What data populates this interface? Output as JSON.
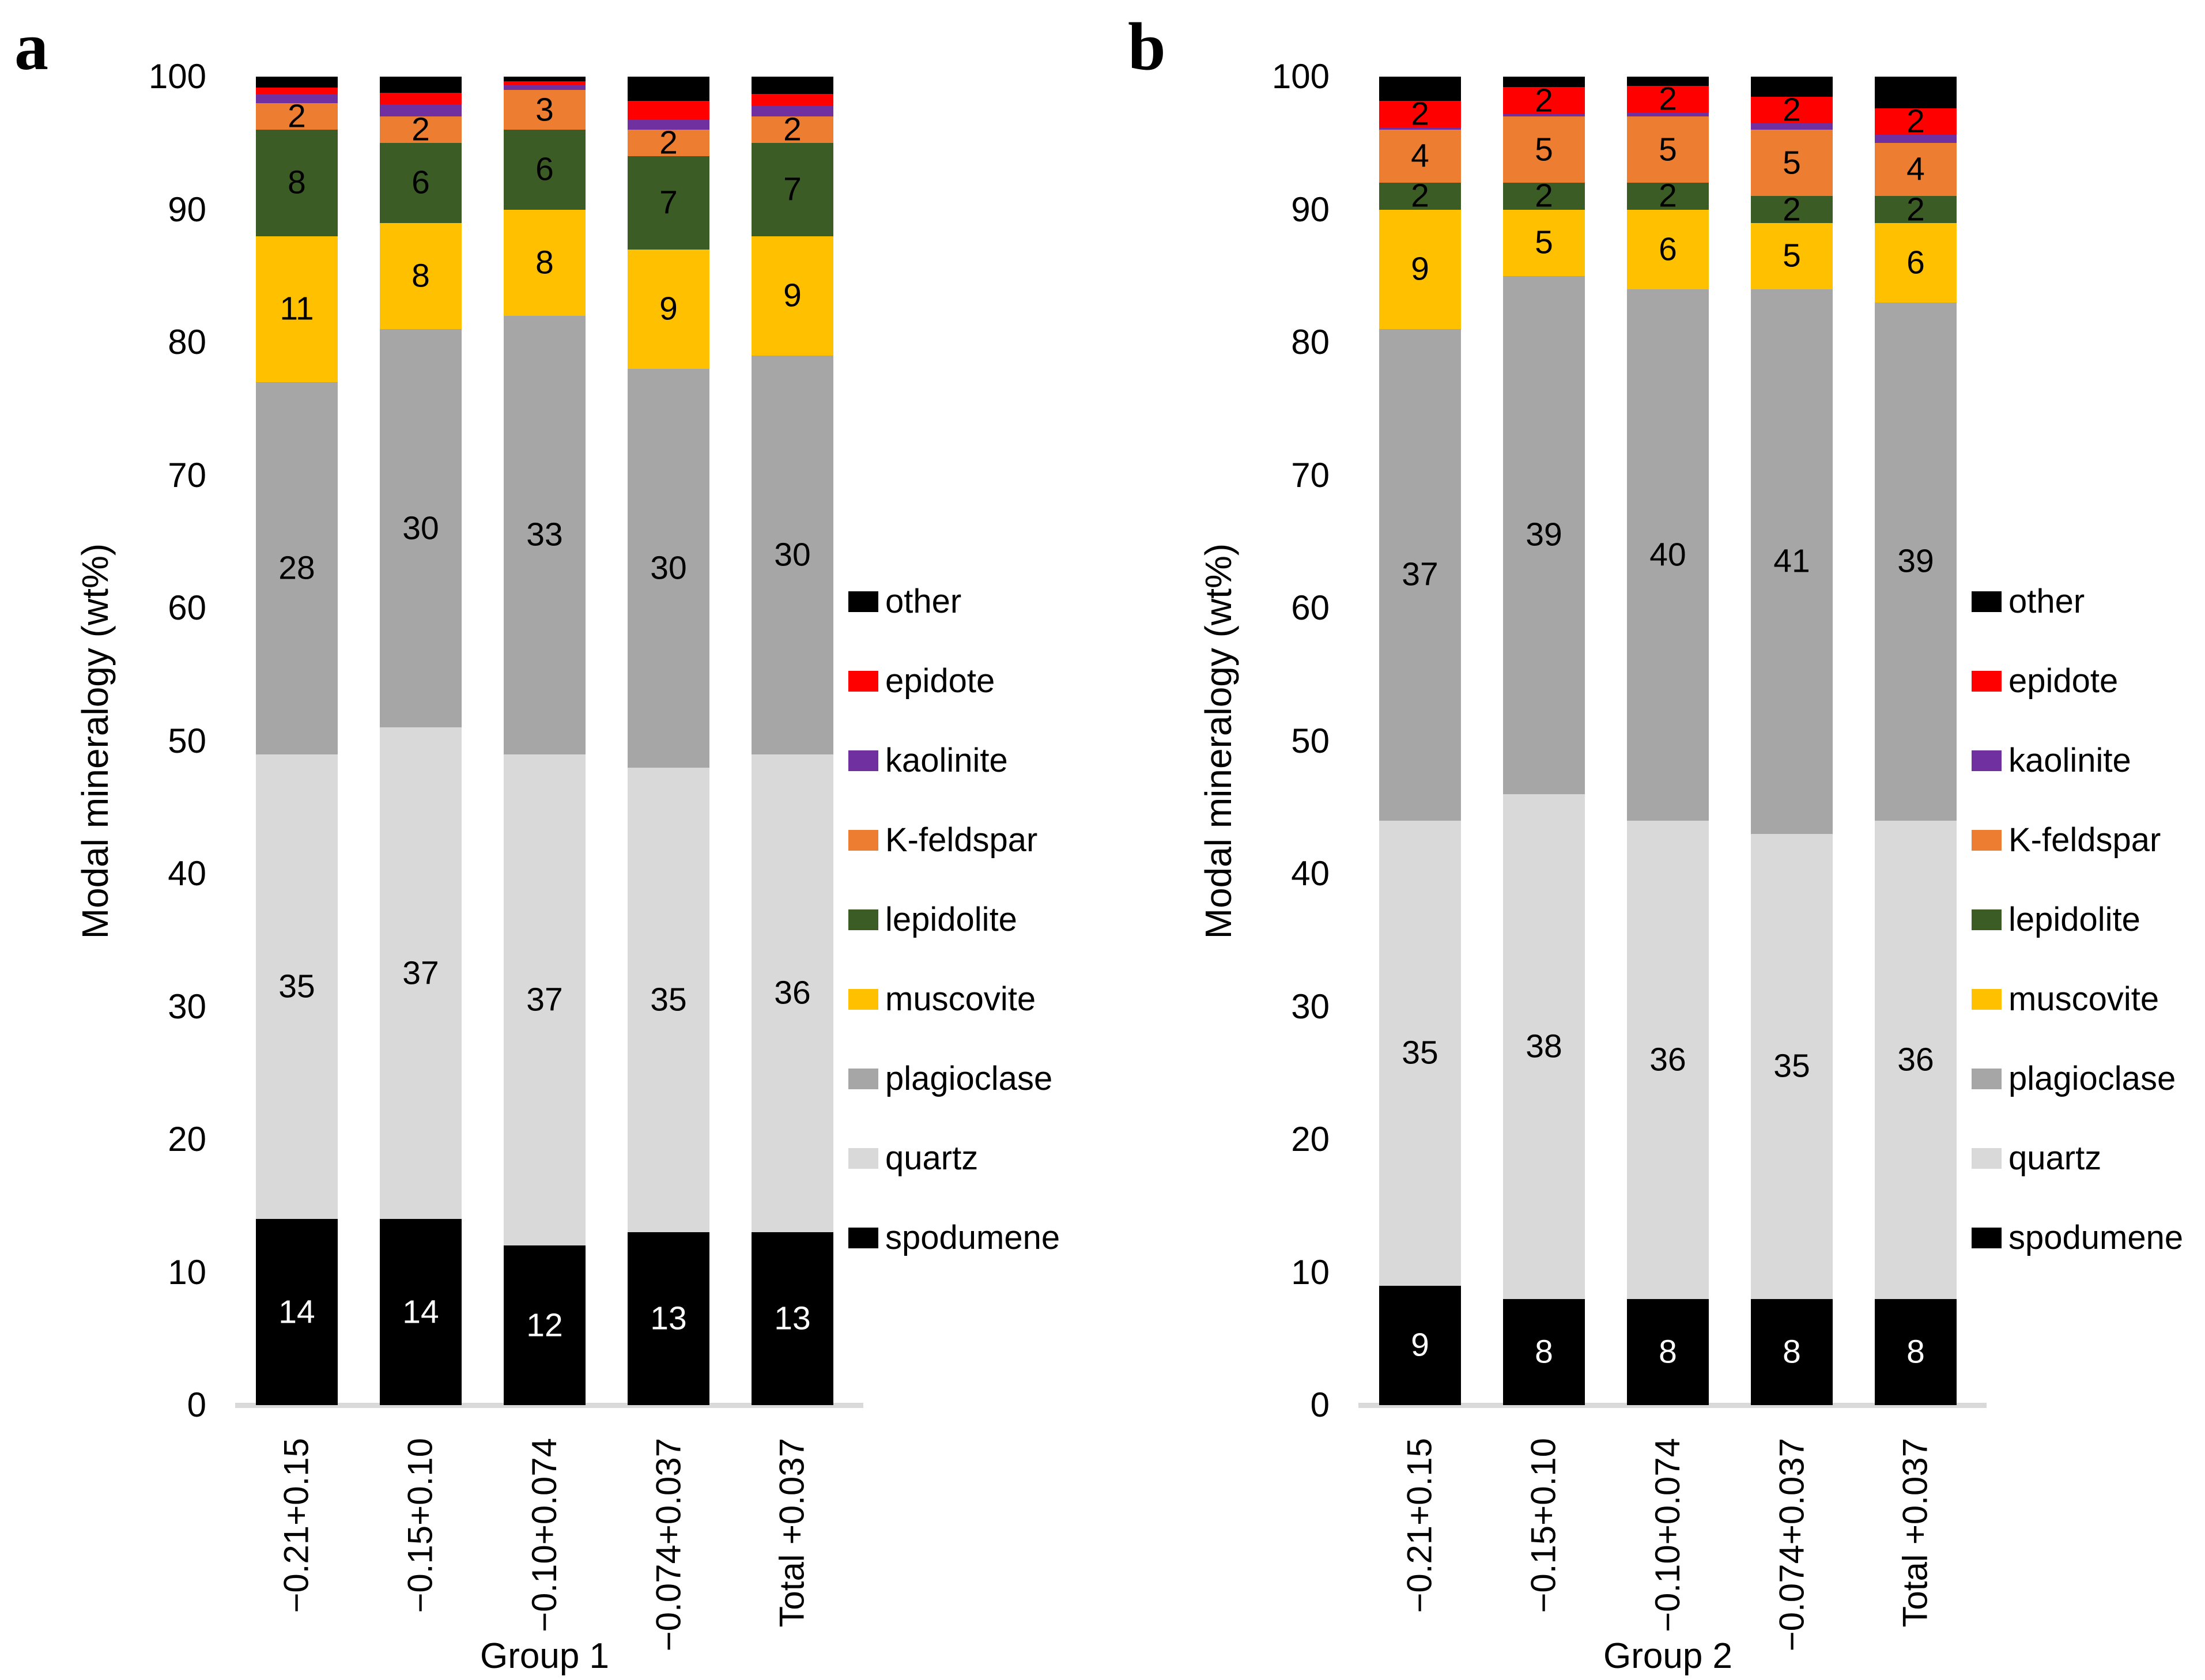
{
  "figure": {
    "description": "Two 100% stacked bar charts of modal mineralogy by size fraction",
    "background_color": "#FFFFFF",
    "baseline_color": "#D9D9D9"
  },
  "legend": {
    "position": "right",
    "items": [
      {
        "label": "other",
        "color": "#000000"
      },
      {
        "label": "epidote",
        "color": "#FF0000"
      },
      {
        "label": "kaolinite",
        "color": "#7030A0"
      },
      {
        "label": "K-feldspar",
        "color": "#ED7D31"
      },
      {
        "label": "lepidolite",
        "color": "#3B5C25"
      },
      {
        "label": "muscovite",
        "color": "#FFC000"
      },
      {
        "label": "plagioclase",
        "color": "#A6A6A6"
      },
      {
        "label": "quartz",
        "color": "#D9D9D9"
      },
      {
        "label": "spodumene",
        "color": "#000000"
      }
    ]
  },
  "chart_data": [
    {
      "type": "bar",
      "stacked": true,
      "panel_letter": "a",
      "group": "Group 1",
      "ylabel": "Modal mineralogy (wt%)",
      "ylim": [
        0,
        100
      ],
      "y_ticks": [
        0,
        10,
        20,
        30,
        40,
        50,
        60,
        70,
        80,
        90,
        100
      ],
      "grid": false,
      "categories": [
        "−0.21+0.15",
        "−0.15+0.10",
        "−0.10+0.074",
        "−0.074+0.037",
        "Total +0.037"
      ],
      "series": [
        {
          "name": "spodumene",
          "color": "#000000",
          "values": [
            14,
            14,
            12,
            13,
            13
          ],
          "labels": [
            "14",
            "14",
            "12",
            "13",
            "13"
          ],
          "label_color": "#FFFFFF"
        },
        {
          "name": "quartz",
          "color": "#D9D9D9",
          "values": [
            35,
            37,
            37,
            35,
            36
          ],
          "labels": [
            "35",
            "37",
            "37",
            "35",
            "36"
          ],
          "label_color": "#000000"
        },
        {
          "name": "plagioclase",
          "color": "#A6A6A6",
          "values": [
            28,
            30,
            33,
            30,
            30
          ],
          "labels": [
            "28",
            "30",
            "33",
            "30",
            "30"
          ],
          "label_color": "#000000"
        },
        {
          "name": "muscovite",
          "color": "#FFC000",
          "values": [
            11,
            8,
            8,
            9,
            9
          ],
          "labels": [
            "11",
            "8",
            "8",
            "9",
            "9"
          ],
          "label_color": "#000000"
        },
        {
          "name": "lepidolite",
          "color": "#3B5C25",
          "values": [
            8,
            6,
            6,
            7,
            7
          ],
          "labels": [
            "8",
            "6",
            "6",
            "7",
            "7"
          ],
          "label_color": "#000000"
        },
        {
          "name": "K-feldspar",
          "color": "#ED7D31",
          "values": [
            2,
            2,
            3,
            2,
            2
          ],
          "labels": [
            "2",
            "2",
            "3",
            "2",
            "2"
          ],
          "label_color": "#000000"
        },
        {
          "name": "kaolinite",
          "color": "#7030A0",
          "values": [
            0.7,
            0.9,
            0.4,
            0.8,
            0.85
          ],
          "labels": null
        },
        {
          "name": "epidote",
          "color": "#FF0000",
          "values": [
            0.5,
            0.9,
            0.25,
            1.4,
            0.85
          ],
          "labels": null
        },
        {
          "name": "other",
          "color": "#000000",
          "values": [
            0.8,
            1.2,
            0.35,
            1.8,
            1.3
          ],
          "labels": null
        }
      ]
    },
    {
      "type": "bar",
      "stacked": true,
      "panel_letter": "b",
      "group": "Group 2",
      "ylabel": "Modal mineralogy (wt%)",
      "ylim": [
        0,
        100
      ],
      "y_ticks": [
        0,
        10,
        20,
        30,
        40,
        50,
        60,
        70,
        80,
        90,
        100
      ],
      "grid": false,
      "categories": [
        "−0.21+0.15",
        "−0.15+0.10",
        "−0.10+0.074",
        "−0.074+0.037",
        "Total +0.037"
      ],
      "series": [
        {
          "name": "spodumene",
          "color": "#000000",
          "values": [
            9,
            8,
            8,
            8,
            8
          ],
          "labels": [
            "9",
            "8",
            "8",
            "8",
            "8"
          ],
          "label_color": "#FFFFFF"
        },
        {
          "name": "quartz",
          "color": "#D9D9D9",
          "values": [
            35,
            38,
            36,
            35,
            36
          ],
          "labels": [
            "35",
            "38",
            "36",
            "35",
            "36"
          ],
          "label_color": "#000000"
        },
        {
          "name": "plagioclase",
          "color": "#A6A6A6",
          "values": [
            37,
            39,
            40,
            41,
            39
          ],
          "labels": [
            "37",
            "39",
            "40",
            "41",
            "39"
          ],
          "label_color": "#000000"
        },
        {
          "name": "muscovite",
          "color": "#FFC000",
          "values": [
            9,
            5,
            6,
            5,
            6
          ],
          "labels": [
            "9",
            "5",
            "6",
            "5",
            "6"
          ],
          "label_color": "#000000"
        },
        {
          "name": "lepidolite",
          "color": "#3B5C25",
          "values": [
            2,
            2,
            2,
            2,
            2
          ],
          "labels": [
            "2",
            "2",
            "2",
            "2",
            "2"
          ],
          "label_color": "#000000"
        },
        {
          "name": "K-feldspar",
          "color": "#ED7D31",
          "values": [
            4,
            5,
            5,
            5,
            4
          ],
          "labels": [
            "4",
            "5",
            "5",
            "5",
            "4"
          ],
          "label_color": "#000000"
        },
        {
          "name": "kaolinite",
          "color": "#7030A0",
          "values": [
            0.2,
            0.2,
            0.3,
            0.5,
            0.6
          ],
          "labels": null
        },
        {
          "name": "epidote",
          "color": "#FF0000",
          "values": [
            2,
            2,
            2,
            2,
            2
          ],
          "labels": [
            "2",
            "2",
            "2",
            "2",
            "2"
          ],
          "label_color": "#000000"
        },
        {
          "name": "other",
          "color": "#000000",
          "values": [
            1.8,
            0.8,
            0.7,
            1.5,
            2.4
          ],
          "labels": null
        }
      ]
    }
  ]
}
